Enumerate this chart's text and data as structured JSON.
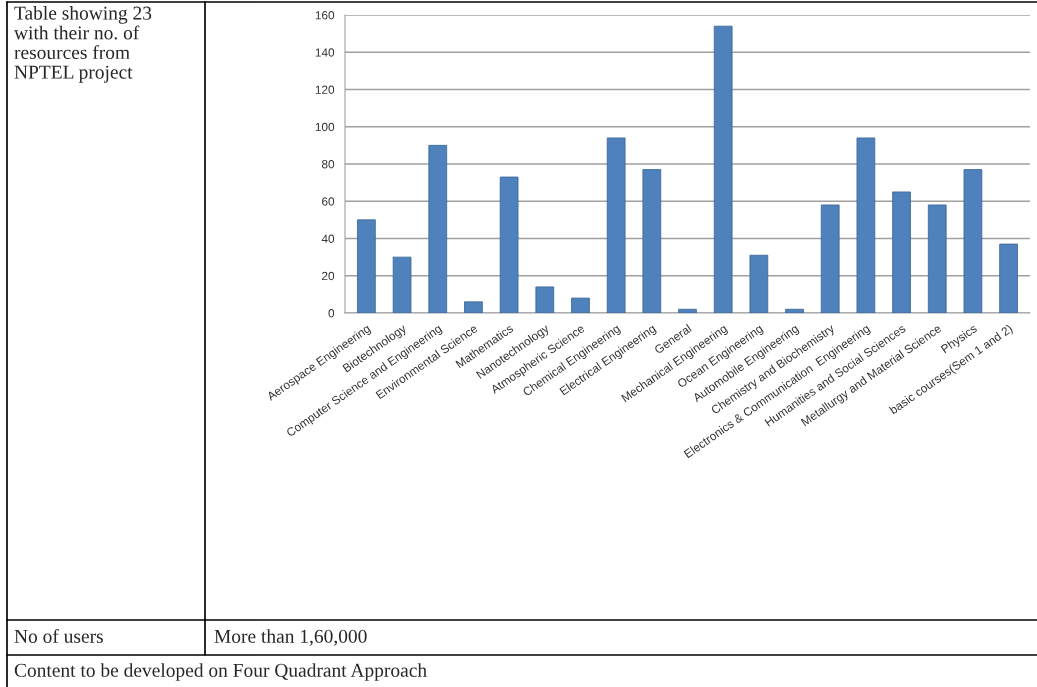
{
  "chart_data": {
    "type": "bar",
    "title": "Table showing 23 with their no. of resources from NPTEL project",
    "categories": [
      "Aerospace Engineering",
      "Biotechnology",
      "Computer Science and Engineering",
      "Environmental Science",
      "Mathematics",
      "Nanotechnology",
      "Atmospheric Science",
      "Chemical Engineering",
      "Electrical Engineering",
      "General",
      "Mechanical Engineering",
      "Ocean Engineering",
      "Automobile Engineering",
      "Chemistry and Biochemistry",
      "Electronics & Communication  Engineering",
      "Humanities and Social Sciences",
      "Metallurgy and Material Science",
      "Physics",
      "basic courses(Sem 1 and 2)"
    ],
    "values": [
      50,
      30,
      90,
      6,
      73,
      14,
      8,
      94,
      77,
      2,
      154,
      31,
      2,
      58,
      94,
      65,
      58,
      77,
      37
    ],
    "color": "#4f81bd",
    "ylim": [
      0,
      160
    ],
    "yticks": [
      0,
      20,
      40,
      60,
      80,
      100,
      120,
      140,
      160
    ],
    "grid": "y",
    "annotations": [
      "No of users",
      "More than 1,60,000",
      "Content to be developed on Four Quadrant Approach"
    ]
  }
}
